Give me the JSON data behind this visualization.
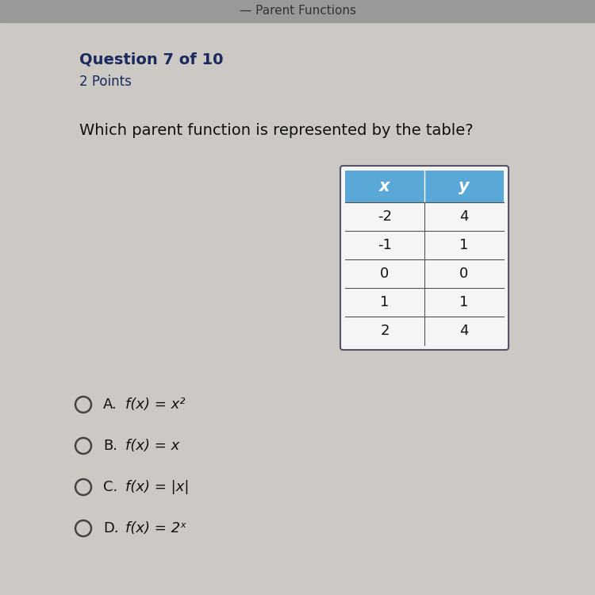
{
  "title_bold": "Question 7 of 10",
  "subtitle": "2 Points",
  "question": "Which parent function is represented by the table?",
  "table_headers": [
    "x",
    "y"
  ],
  "table_data": [
    [
      "-2",
      "4"
    ],
    [
      "-1",
      "1"
    ],
    [
      "0",
      "0"
    ],
    [
      "1",
      "1"
    ],
    [
      "2",
      "4"
    ]
  ],
  "header_bg_color": "#5aa8d8",
  "header_text_color": "#ffffff",
  "table_bg_color": "#f5f5f5",
  "table_border_color": "#555555",
  "options": [
    {
      "label": "A.",
      "text": "f(x) = x²"
    },
    {
      "label": "B.",
      "text": "f(x) = x"
    },
    {
      "label": "C.",
      "text": "f(x) = |x|"
    },
    {
      "label": "D.",
      "text": "f(x) = 2ˣ"
    }
  ],
  "bg_color": "#ccc8c4",
  "title_color": "#1a2a5e",
  "subtitle_color": "#1a2a5e",
  "question_color": "#111111",
  "option_color": "#111111",
  "circle_color": "#444444",
  "top_bar_color": "#999999",
  "top_bar_text": "— Parent Functions",
  "top_bar_text_color": "#333333"
}
